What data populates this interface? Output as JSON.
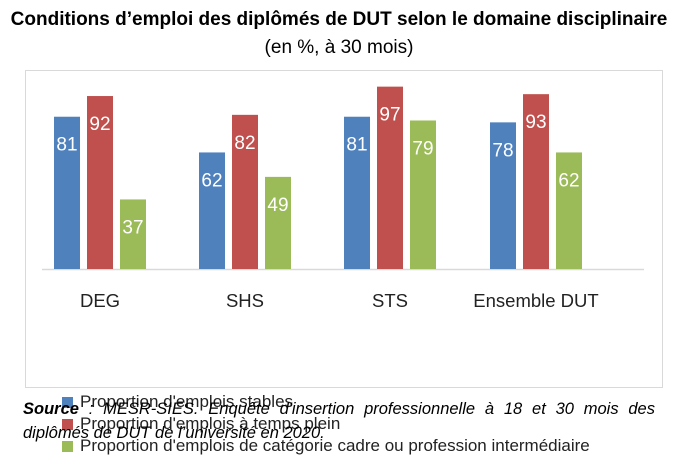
{
  "title": {
    "bold_part": "Conditions d’emploi des diplômés de DUT selon le domaine disciplinaire",
    "normal_part": " (en %, à 30 mois)"
  },
  "chart_data": {
    "type": "bar",
    "categories": [
      "DEG",
      "SHS",
      "STS",
      "Ensemble DUT"
    ],
    "series": [
      {
        "name": "Proportion d'emplois stables",
        "values": [
          81,
          62,
          81,
          78
        ],
        "color": "#4f81bd"
      },
      {
        "name": "Proportion d'emplois à temps plein",
        "values": [
          92,
          82,
          97,
          93
        ],
        "color": "#c0504d"
      },
      {
        "name": "Proportion d'emplois de catégorie cadre ou profession intermédiaire",
        "values": [
          37,
          49,
          79,
          62
        ],
        "color": "#9bbb59"
      }
    ],
    "ylim": [
      0,
      100
    ],
    "grid": false,
    "legend": "bottom",
    "data_labels": true
  },
  "source": {
    "label": "Source",
    "text": " : MESR-SIES. Enquête d'insertion professionnelle à 18 et 30 mois des diplômés de DUT de l’université en 2020."
  }
}
